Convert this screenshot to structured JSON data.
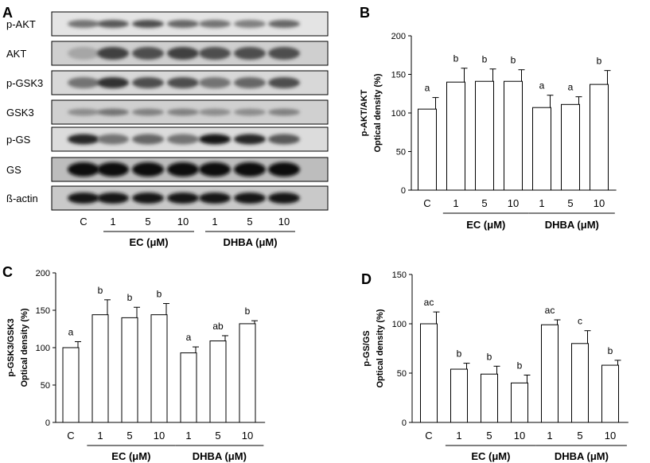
{
  "panel_letters": [
    "A",
    "B",
    "C",
    "D"
  ],
  "blot": {
    "rows": [
      "p-AKT",
      "AKT",
      "p-GSK3",
      "GSK3",
      "p-GS",
      "GS",
      "ß-actin"
    ],
    "lanes": [
      "C",
      "1",
      "5",
      "10",
      "1",
      "5",
      "10"
    ],
    "groups": [
      {
        "label": "EC (μM)",
        "lanes": [
          1,
          3
        ]
      },
      {
        "label": "DHBA (μM)",
        "lanes": [
          4,
          6
        ]
      }
    ]
  },
  "chart_data": [
    {
      "panel": "B",
      "type": "bar",
      "categories": [
        "C",
        "1",
        "5",
        "10",
        "1",
        "5",
        "10"
      ],
      "values": [
        105,
        140,
        141,
        141,
        107,
        111,
        137
      ],
      "errors": [
        15,
        18,
        16,
        15,
        16,
        10,
        18
      ],
      "letters": [
        "a",
        "b",
        "b",
        "b",
        "a",
        "a",
        "b"
      ],
      "ylabel_line1": "p-AKT/AKT",
      "ylabel_line2": "Optical density (%)",
      "ylim": [
        0,
        200
      ],
      "yticks": [
        0,
        50,
        100,
        150,
        200
      ],
      "groups": [
        {
          "label": "EC (μM)",
          "from": 1,
          "to": 3
        },
        {
          "label": "DHBA (μM)",
          "from": 4,
          "to": 6
        }
      ]
    },
    {
      "panel": "C",
      "type": "bar",
      "categories": [
        "C",
        "1",
        "5",
        "10",
        "1",
        "5",
        "10"
      ],
      "values": [
        100,
        144,
        140,
        144,
        93,
        109,
        132
      ],
      "errors": [
        8,
        20,
        14,
        15,
        8,
        7,
        4
      ],
      "letters": [
        "a",
        "b",
        "b",
        "b",
        "a",
        "ab",
        "b"
      ],
      "ylabel_line1": "p-GSK3/GSK3",
      "ylabel_line2": "Optical density (%)",
      "ylim": [
        0,
        200
      ],
      "yticks": [
        0,
        50,
        100,
        150,
        200
      ],
      "groups": [
        {
          "label": "EC (μM)",
          "from": 1,
          "to": 3
        },
        {
          "label": "DHBA (μM)",
          "from": 4,
          "to": 6
        }
      ]
    },
    {
      "panel": "D",
      "type": "bar",
      "categories": [
        "C",
        "1",
        "5",
        "10",
        "1",
        "5",
        "10"
      ],
      "values": [
        100,
        54,
        49,
        40,
        99,
        80,
        58
      ],
      "errors": [
        12,
        6,
        8,
        8,
        5,
        13,
        5
      ],
      "letters": [
        "ac",
        "b",
        "b",
        "b",
        "ac",
        "c",
        "b"
      ],
      "ylabel_line1": "p-GS/GS",
      "ylabel_line2": "Optical density (%)",
      "ylim": [
        0,
        150
      ],
      "yticks": [
        0,
        50,
        100,
        150
      ],
      "groups": [
        {
          "label": "EC (μM)",
          "from": 1,
          "to": 3
        },
        {
          "label": "DHBA (μM)",
          "from": 4,
          "to": 6
        }
      ]
    }
  ]
}
